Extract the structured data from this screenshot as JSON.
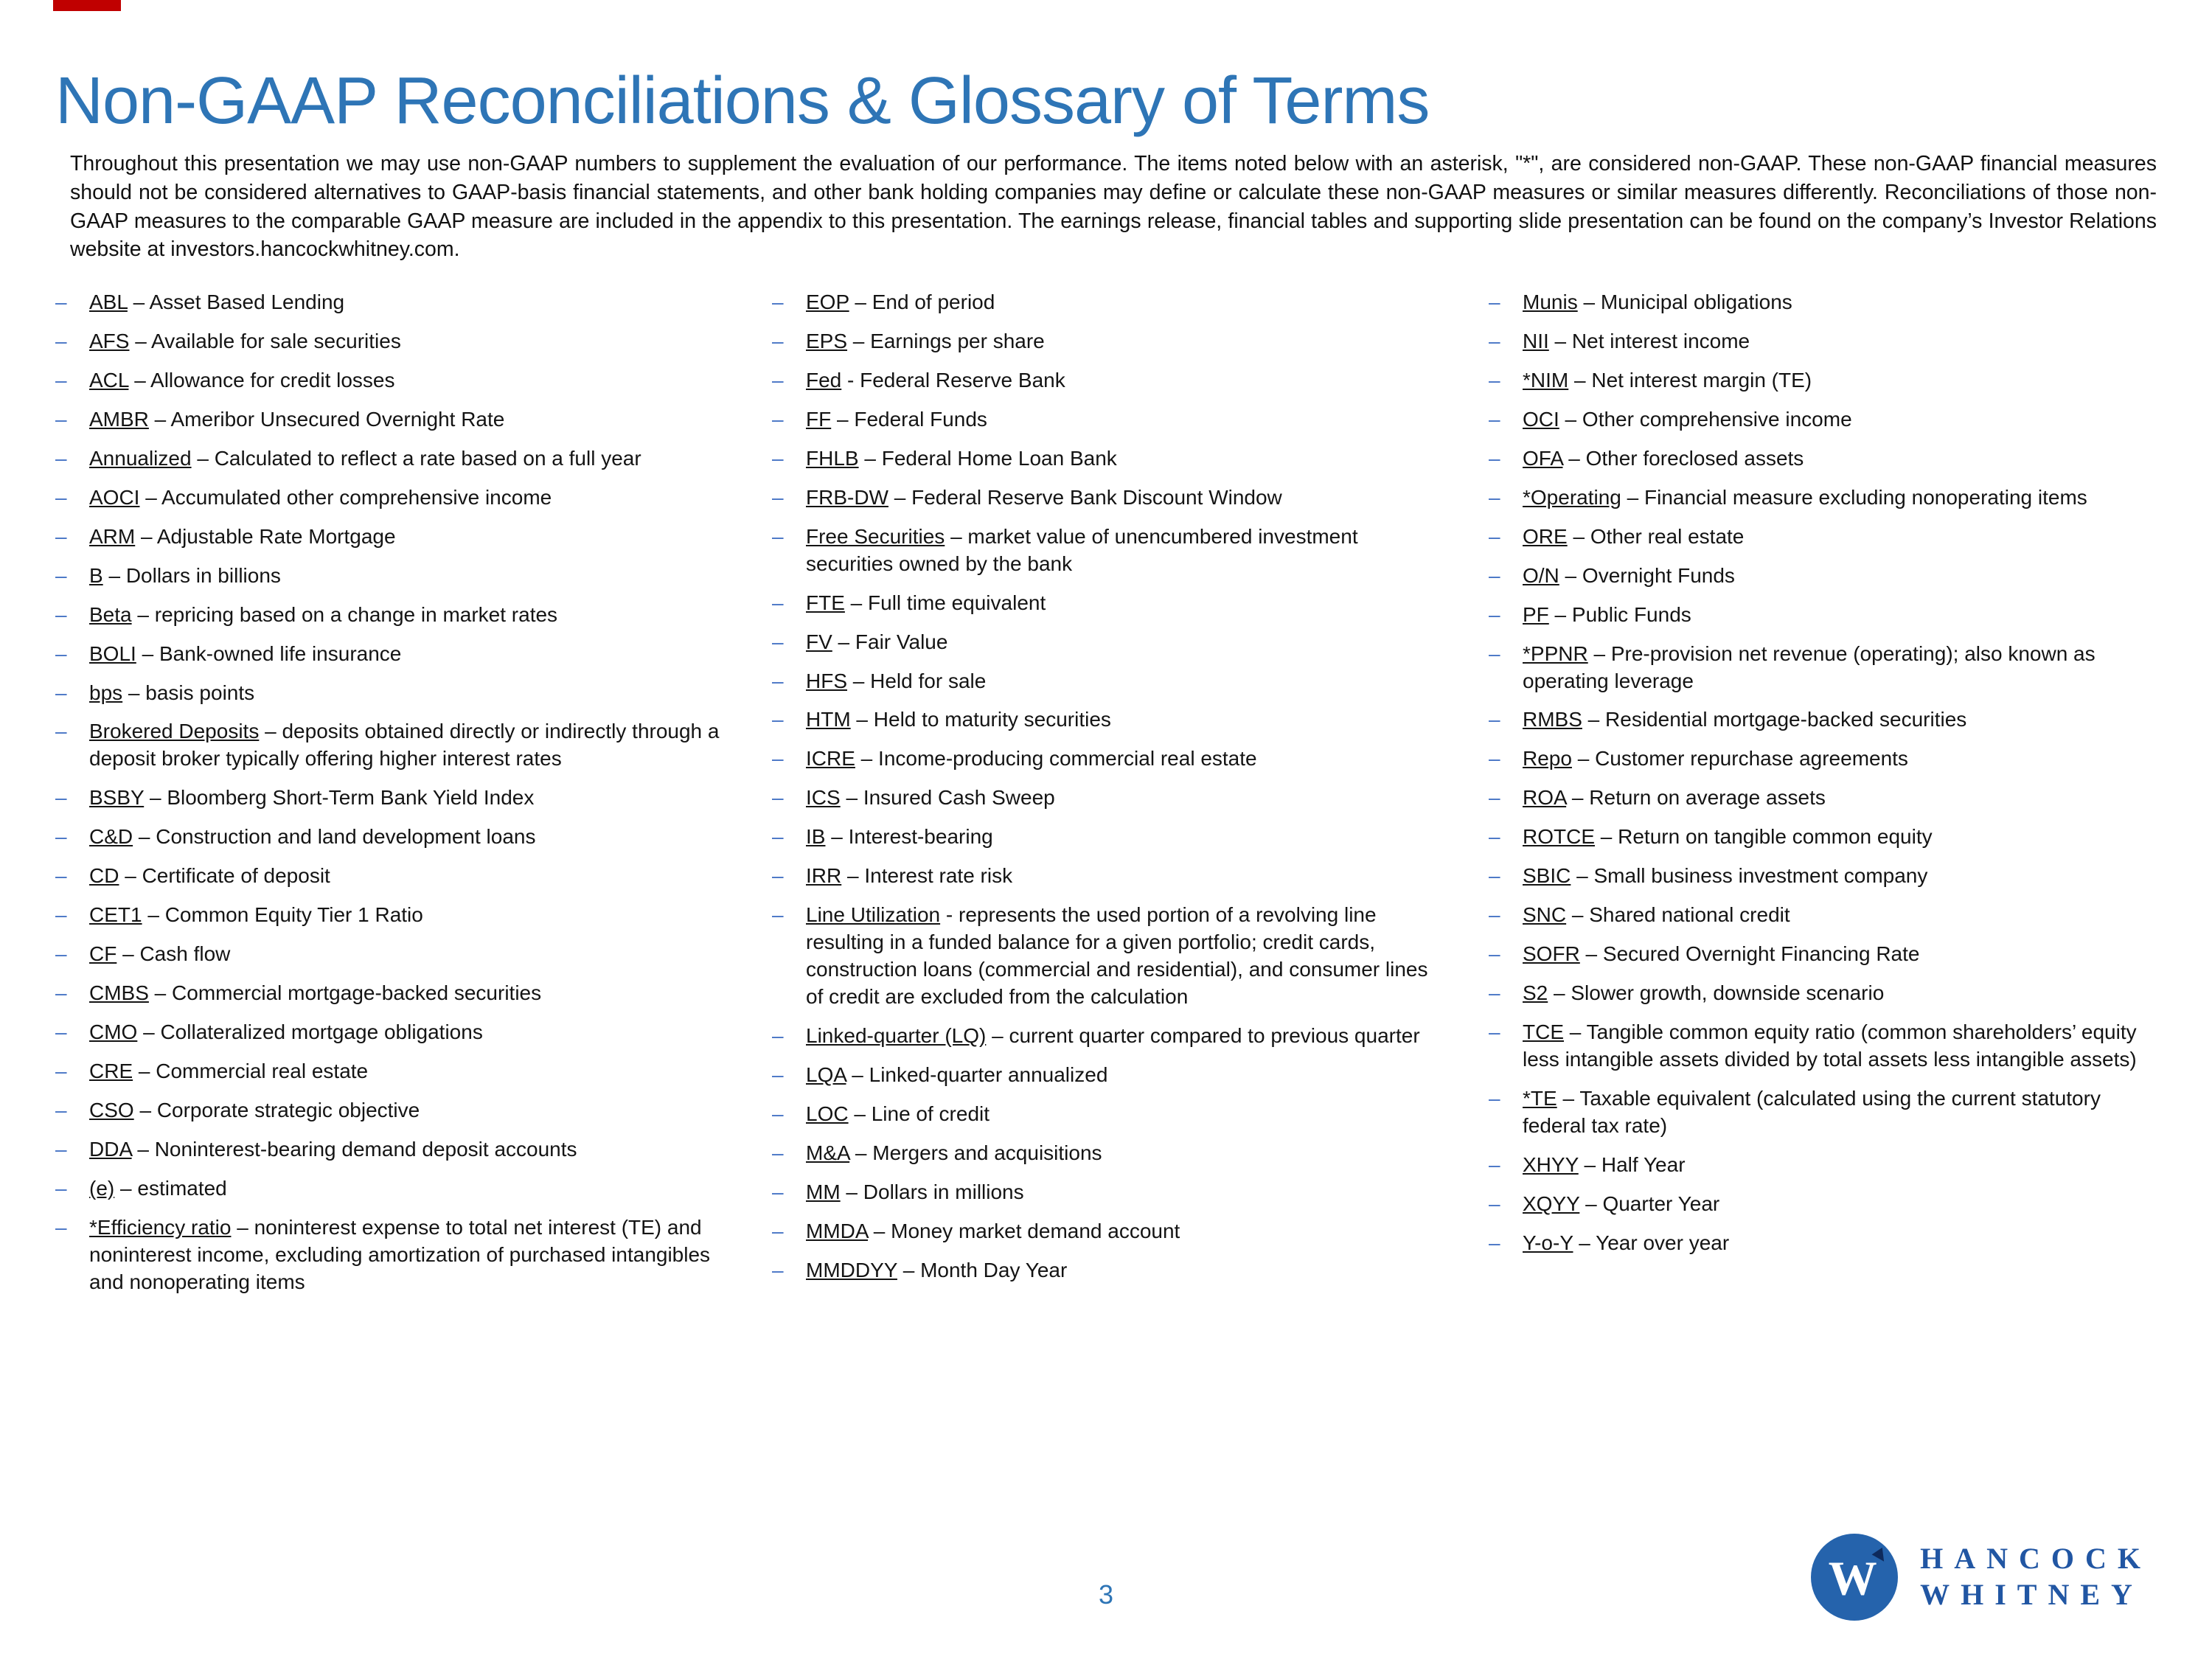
{
  "slide": {
    "title": "Non-GAAP Reconciliations & Glossary of Terms",
    "intro": "Throughout this presentation we may use non-GAAP numbers to supplement the evaluation of our performance. The items noted below with an asterisk, \"*\", are considered non-GAAP. These non-GAAP financial measures should not be considered alternatives to GAAP-basis financial statements, and other bank holding companies may define or calculate these non-GAAP measures or similar measures differently. Reconciliations of those non-GAAP measures to the comparable GAAP measure are included in the appendix to this presentation. The earnings release, financial tables and supporting slide presentation can be found on the company’s Investor Relations website at investors.hancockwhitney.com.",
    "page_number": "3"
  },
  "colors": {
    "title_blue": "#2E75B6",
    "accent_red": "#C00000",
    "bullet_blue": "#4472C4",
    "logo_blue": "#2156A3"
  },
  "logo": {
    "line1": "HANCOCK",
    "line2": "WHITNEY",
    "monogram": "W"
  },
  "columns": [
    {
      "items": [
        {
          "term": "ABL",
          "def": "– Asset Based Lending"
        },
        {
          "term": "AFS",
          "def": "– Available for sale securities"
        },
        {
          "term": "ACL",
          "def": "– Allowance for credit losses"
        },
        {
          "term": "AMBR",
          "def": "– Ameribor Unsecured Overnight Rate"
        },
        {
          "term": "Annualized",
          "def": "– Calculated to reflect a rate based on a full year"
        },
        {
          "term": "AOCI",
          "def": "– Accumulated other comprehensive income"
        },
        {
          "term": "ARM",
          "def": "– Adjustable Rate Mortgage"
        },
        {
          "term": "B",
          "def": "– Dollars in billions"
        },
        {
          "term": "Beta",
          "def": "– repricing based on a change in market rates"
        },
        {
          "term": "BOLI",
          "def": "– Bank-owned life insurance"
        },
        {
          "term": "bps",
          "def": "– basis points"
        },
        {
          "term": "Brokered Deposits",
          "def": "– deposits obtained directly or indirectly through a deposit broker typically offering higher interest rates"
        },
        {
          "term": "BSBY",
          "def": "– Bloomberg Short-Term Bank Yield Index"
        },
        {
          "term": "C&D",
          "def": "– Construction and land development loans"
        },
        {
          "term": "CD",
          "def": "– Certificate of deposit"
        },
        {
          "term": "CET1",
          "def": "– Common Equity Tier 1 Ratio"
        },
        {
          "term": "CF",
          "def": "– Cash flow"
        },
        {
          "term": "CMBS",
          "def": "– Commercial mortgage-backed securities"
        },
        {
          "term": "CMO",
          "def": "– Collateralized mortgage obligations"
        },
        {
          "term": "CRE",
          "def": "– Commercial real estate"
        },
        {
          "term": "CSO",
          "def": "– Corporate strategic objective"
        },
        {
          "term": "DDA",
          "def": "– Noninterest-bearing demand deposit accounts"
        },
        {
          "term": "(e)",
          "def": "– estimated"
        },
        {
          "term": "*Efficiency ratio",
          "def": "– noninterest expense to total net interest (TE) and noninterest income, excluding amortization of purchased intangibles and nonoperating items"
        }
      ]
    },
    {
      "items": [
        {
          "term": "EOP",
          "def": "– End of period"
        },
        {
          "term": "EPS",
          "def": "– Earnings per share"
        },
        {
          "term": "Fed",
          "def": "-  Federal Reserve Bank"
        },
        {
          "term": "FF",
          "def": "– Federal Funds"
        },
        {
          "term": "FHLB",
          "def": "– Federal Home Loan Bank"
        },
        {
          "term": "FRB-DW",
          "def": "– Federal Reserve Bank Discount Window"
        },
        {
          "term": "Free Securities",
          "def": "– market value of unencumbered investment securities owned by the bank"
        },
        {
          "term": "FTE",
          "def": "– Full time equivalent"
        },
        {
          "term": "FV",
          "def": "– Fair Value"
        },
        {
          "term": "HFS",
          "def": "– Held for sale"
        },
        {
          "term": "HTM",
          "def": "– Held to maturity securities"
        },
        {
          "term": "ICRE",
          "def": "– Income-producing commercial real estate"
        },
        {
          "term": "ICS",
          "def": "– Insured Cash Sweep"
        },
        {
          "term": "IB",
          "def": "– Interest-bearing"
        },
        {
          "term": "IRR",
          "def": "– Interest rate risk"
        },
        {
          "term": "Line Utilization",
          "def": "- represents the used portion of a revolving line resulting in a funded balance for a given portfolio; credit cards, construction loans (commercial and residential), and consumer lines of credit are excluded from the calculation"
        },
        {
          "term": "Linked-quarter (LQ)",
          "def": "– current quarter compared to previous quarter"
        },
        {
          "term": "LQA",
          "def": "– Linked-quarter annualized"
        },
        {
          "term": "LOC",
          "def": "– Line of credit"
        },
        {
          "term": "M&A",
          "def": "– Mergers and acquisitions"
        },
        {
          "term": "MM",
          "def": "– Dollars in millions"
        },
        {
          "term": "MMDA",
          "def": "– Money market demand account"
        },
        {
          "term": "MMDDYY",
          "def": "– Month Day Year"
        }
      ]
    },
    {
      "items": [
        {
          "term": "Munis",
          "def": "– Municipal obligations"
        },
        {
          "term": "NII",
          "def": "– Net interest income"
        },
        {
          "term": "*NIM",
          "def": "– Net interest margin (TE)"
        },
        {
          "term": "OCI",
          "def": "– Other comprehensive income"
        },
        {
          "term": "OFA",
          "def": "– Other foreclosed assets"
        },
        {
          "term": "*Operating",
          "def": "– Financial measure excluding nonoperating items"
        },
        {
          "term": "ORE",
          "def": "– Other real estate"
        },
        {
          "term": "O/N",
          "def": "– Overnight Funds"
        },
        {
          "term": "PF",
          "def": "– Public Funds"
        },
        {
          "term": "*PPNR",
          "def": "– Pre-provision net revenue (operating); also known as operating leverage"
        },
        {
          "term": "RMBS",
          "def": "– Residential mortgage-backed securities"
        },
        {
          "term": "Repo",
          "def": "– Customer repurchase agreements"
        },
        {
          "term": "ROA",
          "def": "– Return on average assets"
        },
        {
          "term": "ROTCE",
          "def": "– Return on tangible common equity"
        },
        {
          "term": "SBIC",
          "def": "– Small business investment company"
        },
        {
          "term": "SNC",
          "def": "– Shared national credit"
        },
        {
          "term": "SOFR",
          "def": "– Secured Overnight Financing Rate"
        },
        {
          "term": "S2",
          "def": "– Slower growth, downside scenario"
        },
        {
          "term": "TCE",
          "def": "– Tangible common equity ratio (common shareholders’ equity less intangible assets divided by total assets less intangible assets)"
        },
        {
          "term": "*TE",
          "def": "– Taxable equivalent (calculated using the current statutory federal tax rate)"
        },
        {
          "term": "XHYY",
          "def": "– Half Year"
        },
        {
          "term": "XQYY",
          "def": "– Quarter Year"
        },
        {
          "term": "Y-o-Y",
          "def": "– Year over year"
        }
      ]
    }
  ]
}
